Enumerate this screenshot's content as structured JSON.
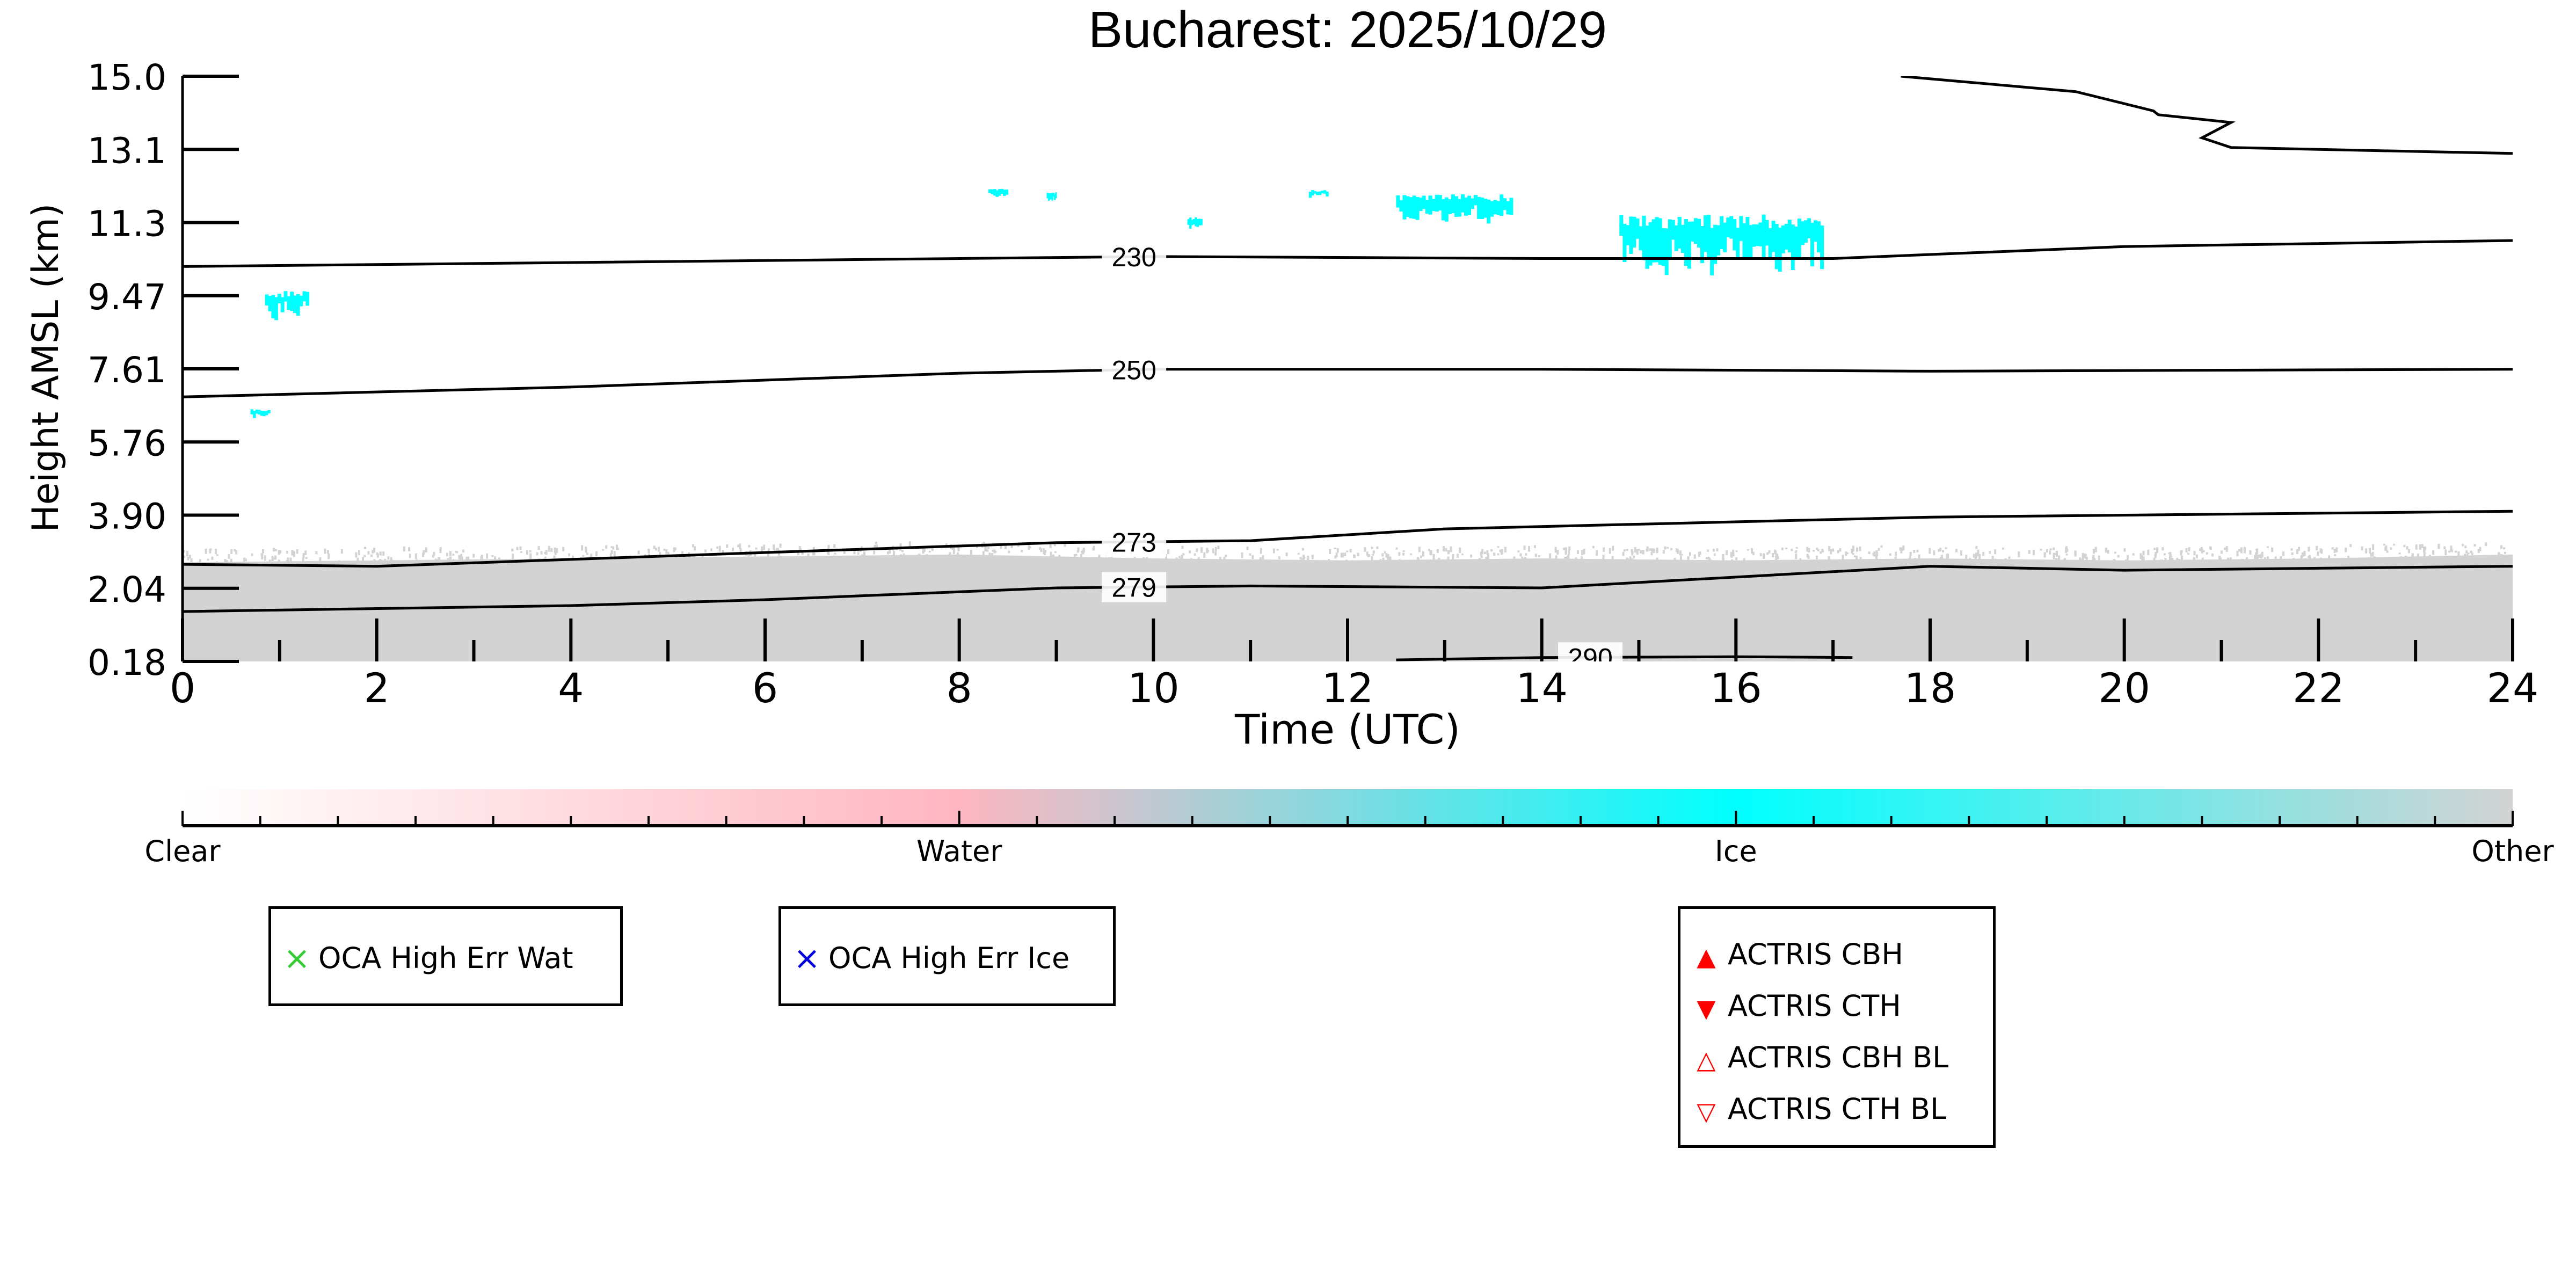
{
  "chart_data": {
    "type": "heatmap",
    "title": "Bucharest: 2025/10/29",
    "xlabel": "Time (UTC)",
    "ylabel": "Height AMSL (km)",
    "xlim": [
      0,
      24
    ],
    "ylim": [
      0.18,
      15.0
    ],
    "x_ticks": [
      "0",
      "2",
      "4",
      "6",
      "8",
      "10",
      "12",
      "14",
      "16",
      "18",
      "20",
      "22",
      "24"
    ],
    "y_ticks": [
      "0.18",
      "2.04",
      "3.90",
      "5.76",
      "7.61",
      "9.47",
      "11.3",
      "13.1",
      "15.0"
    ],
    "y_tick_values": [
      0.18,
      2.04,
      3.9,
      5.76,
      7.61,
      9.47,
      11.3,
      13.1,
      15.0
    ],
    "grid": false,
    "classes": [
      "Clear",
      "Water",
      "Ice",
      "Other"
    ],
    "class_colors": {
      "Clear": "#ffffff",
      "Water": "#ffb6c1",
      "Ice": "#00ffff",
      "Other": "#d3d3d3"
    },
    "other_region": {
      "class": "Other",
      "time": [
        0,
        2,
        4,
        6,
        8,
        10,
        12,
        14,
        16,
        18,
        20,
        22,
        24
      ],
      "top_km": [
        2.7,
        2.75,
        2.8,
        2.85,
        2.9,
        2.8,
        2.75,
        2.8,
        2.75,
        2.8,
        2.75,
        2.8,
        2.9
      ]
    },
    "ice_patches": [
      {
        "t0": 0.85,
        "t1": 1.3,
        "h0": 9.0,
        "h1": 9.6
      },
      {
        "t0": 0.7,
        "t1": 0.9,
        "h0": 6.4,
        "h1": 6.6
      },
      {
        "t0": 8.3,
        "t1": 8.5,
        "h0": 11.95,
        "h1": 12.15
      },
      {
        "t0": 8.9,
        "t1": 9.0,
        "h0": 11.85,
        "h1": 12.05
      },
      {
        "t0": 10.35,
        "t1": 10.5,
        "h0": 11.15,
        "h1": 11.45
      },
      {
        "t0": 11.6,
        "t1": 11.8,
        "h0": 11.95,
        "h1": 12.1
      },
      {
        "t0": 12.5,
        "t1": 13.7,
        "h0": 11.4,
        "h1": 12.0
      },
      {
        "t0": 14.8,
        "t1": 16.9,
        "h0": 10.3,
        "h1": 11.5
      }
    ],
    "temperature_contours": [
      {
        "label": "230",
        "label_t": 9.8,
        "time": [
          0,
          4,
          8,
          10,
          14,
          17,
          20,
          24
        ],
        "height_km": [
          10.2,
          10.3,
          10.4,
          10.45,
          10.4,
          10.4,
          10.7,
          10.85
        ]
      },
      {
        "label": "250",
        "label_t": 9.8,
        "time": [
          0,
          4,
          8,
          10,
          14,
          18,
          24
        ],
        "height_km": [
          6.9,
          7.15,
          7.5,
          7.6,
          7.6,
          7.55,
          7.6
        ]
      },
      {
        "label": "273",
        "label_t": 9.8,
        "time": [
          0,
          2,
          6,
          9,
          11,
          13,
          18,
          24
        ],
        "height_km": [
          2.65,
          2.6,
          2.95,
          3.2,
          3.25,
          3.55,
          3.85,
          4.0
        ]
      },
      {
        "label": "279",
        "label_t": 9.8,
        "time": [
          0,
          4,
          6,
          9,
          11,
          14,
          18,
          20,
          24
        ],
        "height_km": [
          1.45,
          1.6,
          1.75,
          2.05,
          2.1,
          2.05,
          2.6,
          2.5,
          2.6
        ]
      },
      {
        "label": "290",
        "label_t": 14.5,
        "time": [
          12.5,
          14,
          16,
          17.2
        ],
        "height_km": [
          0.22,
          0.28,
          0.3,
          0.28
        ]
      },
      {
        "label": "",
        "label_t": null,
        "time": [
          17.7,
          19.5,
          20.3,
          20.35,
          21.1,
          20.8,
          21.1,
          22,
          24
        ],
        "height_km": [
          15.0,
          14.6,
          14.1,
          14.0,
          13.8,
          13.4,
          13.15,
          13.1,
          13.0
        ]
      }
    ],
    "colorbar": {
      "labels": [
        "Clear",
        "Water",
        "Ice",
        "Other"
      ],
      "positions": [
        0,
        1,
        2,
        3
      ]
    },
    "legends": [
      {
        "entries": [
          {
            "symbol": "×",
            "color": "#33cc33",
            "label": "OCA High Err Wat"
          }
        ]
      },
      {
        "entries": [
          {
            "symbol": "×",
            "color": "#0000dd",
            "label": "OCA High Err Ice"
          }
        ]
      },
      {
        "entries": [
          {
            "symbol": "▲",
            "color": "#ff0000",
            "label": "ACTRIS CBH"
          },
          {
            "symbol": "▼",
            "color": "#ff0000",
            "label": "ACTRIS CTH"
          },
          {
            "symbol": "△",
            "color": "#ff0000",
            "label": "ACTRIS CBH BL"
          },
          {
            "symbol": "▽",
            "color": "#ff0000",
            "label": "ACTRIS CTH BL"
          }
        ]
      }
    ]
  }
}
